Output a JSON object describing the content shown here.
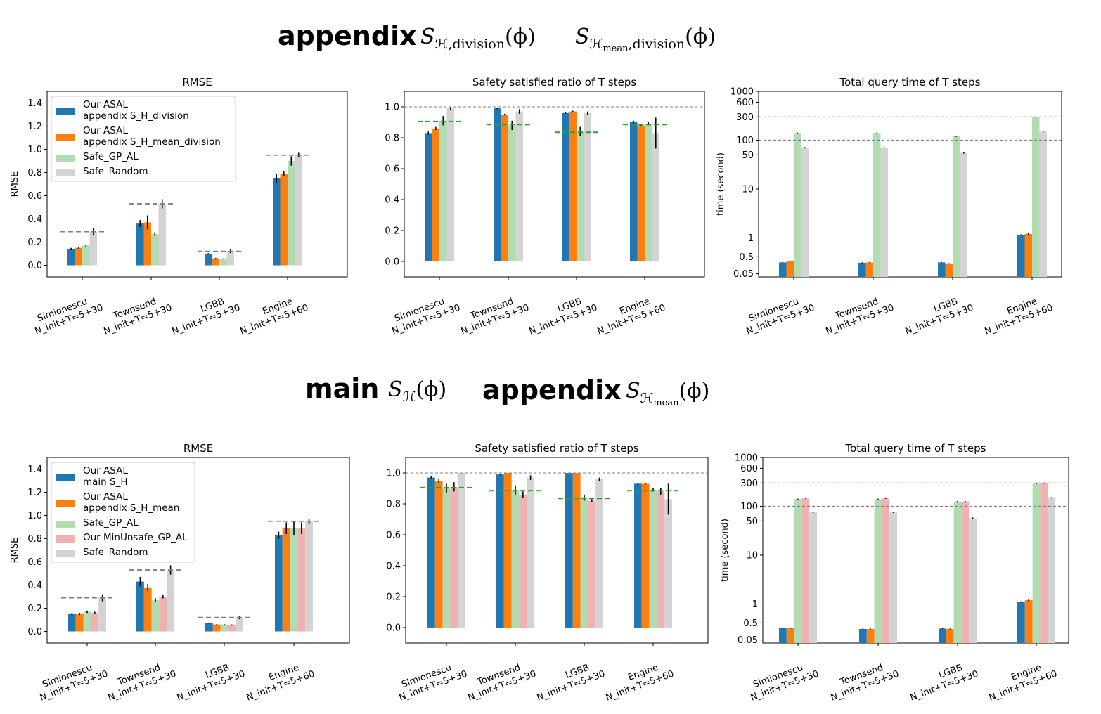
{
  "headers": {
    "top": {
      "word1": "appendix",
      "expr1": {
        "letter": "S",
        "sub": "ℋ,division",
        "arg": "(ϕ)"
      },
      "expr2": {
        "letter": "S",
        "sub": "ℋ",
        "subsub": "mean",
        "sub2": ",division",
        "arg": "(ϕ)"
      }
    },
    "bottom": {
      "word1": "main",
      "expr1": {
        "letter": "S",
        "sub": "ℋ",
        "arg": "(ϕ)"
      },
      "word2": "appendix",
      "expr2": {
        "letter": "S",
        "sub": "ℋ",
        "subsub": "mean",
        "arg": "(ϕ)"
      }
    }
  },
  "colors": {
    "blue": "#1f77b4",
    "orange": "#ff7f0e",
    "green": "#b1dcb1",
    "pink": "#f0b1b2",
    "gray": "#d3d3d3",
    "ref_gray": "#808080",
    "ref_green": "#2ca02c"
  },
  "chart_data": [
    {
      "id": "top_rmse",
      "type": "bar",
      "title": "RMSE",
      "xlabel": "",
      "ylabel": "RMSE",
      "ylim": [
        -0.1,
        1.5
      ],
      "yticks": [
        0.0,
        0.2,
        0.4,
        0.6,
        0.8,
        1.0,
        1.2,
        1.4
      ],
      "ytick_labels": [
        "0.0",
        "0.2",
        "0.4",
        "0.6",
        "0.8",
        "1.0",
        "1.2",
        "1.4"
      ],
      "categories": [
        [
          "Simionescu",
          "N_init+T=5+30"
        ],
        [
          "Townsend",
          "N_init+T=5+30"
        ],
        [
          "LGBB",
          "N_init+T=5+30"
        ],
        [
          "Engine",
          "N_init+T=5+60"
        ]
      ],
      "legend": {
        "placement": "upper-left",
        "entries": [
          [
            "Our ASAL",
            "  appendix S_H_division"
          ],
          [
            "Our ASAL",
            "  appendix S_H_mean_division"
          ],
          [
            "Safe_GP_AL"
          ],
          [
            "Safe_Random"
          ]
        ]
      },
      "series": [
        {
          "name": "Our ASAL appendix S_H_division",
          "color_key": "blue",
          "values": [
            0.14,
            0.36,
            0.1,
            0.75
          ],
          "err": [
            0.01,
            0.03,
            0.005,
            0.04
          ]
        },
        {
          "name": "Our ASAL appendix S_H_mean_division",
          "color_key": "orange",
          "values": [
            0.15,
            0.37,
            0.06,
            0.79
          ],
          "err": [
            0.01,
            0.06,
            0.004,
            0.02
          ]
        },
        {
          "name": "Safe_GP_AL",
          "color_key": "green",
          "values": [
            0.17,
            0.27,
            0.055,
            0.9
          ],
          "err": [
            0.01,
            0.015,
            0.004,
            0.04
          ]
        },
        {
          "name": "Safe_Random",
          "color_key": "gray",
          "values": [
            0.29,
            0.53,
            0.12,
            0.95
          ],
          "err": [
            0.03,
            0.04,
            0.015,
            0.02
          ]
        }
      ],
      "ref_lines": [
        {
          "color_key": "ref_gray",
          "style": "dashed",
          "per_category": [
            0.29,
            0.53,
            0.12,
            0.95
          ]
        }
      ]
    },
    {
      "id": "top_safety",
      "type": "bar",
      "title": "Safety satisfied ratio of T steps",
      "xlabel": "",
      "ylabel": "",
      "ylim": [
        -0.1,
        1.1
      ],
      "yticks": [
        0.0,
        0.2,
        0.4,
        0.6,
        0.8,
        1.0
      ],
      "ytick_labels": [
        "0.0",
        "0.2",
        "0.4",
        "0.6",
        "0.8",
        "1.0"
      ],
      "categories": [
        [
          "Simionescu",
          "N_init+T=5+30"
        ],
        [
          "Townsend",
          "N_init+T=5+30"
        ],
        [
          "LGBB",
          "N_init+T=5+30"
        ],
        [
          "Engine",
          "N_init+T=5+60"
        ]
      ],
      "series": [
        {
          "name": "Our ASAL appendix S_H_division",
          "color_key": "blue",
          "values": [
            0.83,
            0.99,
            0.96,
            0.9
          ],
          "err": [
            0.01,
            0.005,
            0.005,
            0.01
          ]
        },
        {
          "name": "Our ASAL appendix S_H_mean_division",
          "color_key": "orange",
          "values": [
            0.86,
            0.95,
            0.97,
            0.88
          ],
          "err": [
            0.01,
            0.005,
            0.005,
            0.005
          ]
        },
        {
          "name": "Safe_GP_AL",
          "color_key": "green",
          "values": [
            0.91,
            0.88,
            0.84,
            0.89
          ],
          "err": [
            0.03,
            0.03,
            0.03,
            0.01
          ]
        },
        {
          "name": "Safe_Random",
          "color_key": "gray",
          "values": [
            0.99,
            0.97,
            0.96,
            0.83
          ],
          "err": [
            0.01,
            0.015,
            0.01,
            0.1
          ]
        }
      ],
      "ref_lines": [
        {
          "color_key": "ref_gray",
          "style": "dashed",
          "value": 1.0
        },
        {
          "color_key": "ref_green",
          "style": "dashed",
          "per_category": [
            0.905,
            0.885,
            0.835,
            0.885
          ]
        }
      ]
    },
    {
      "id": "top_time",
      "type": "bar",
      "title": "Total query time of T steps",
      "xlabel": "",
      "ylabel": "time (second)",
      "yscale": "symlog",
      "ylim": [
        0.03,
        1000
      ],
      "yticks": [
        0.05,
        0.5,
        1,
        10,
        50,
        100,
        300,
        600,
        1000
      ],
      "ytick_labels": [
        "0.05",
        "0.5",
        "1",
        "10",
        "50",
        "100",
        "300",
        "600",
        "1000"
      ],
      "categories": [
        [
          "Simionescu",
          "N_init+T=5+30"
        ],
        [
          "Townsend",
          "N_init+T=5+30"
        ],
        [
          "LGBB",
          "N_init+T=5+30"
        ],
        [
          "Engine",
          "N_init+T=5+60"
        ]
      ],
      "series": [
        {
          "name": "Our ASAL appendix S_H_division",
          "color_key": "blue",
          "values": [
            0.35,
            0.34,
            0.35,
            1.15
          ],
          "err": [
            0.01,
            0.01,
            0.01,
            0.03
          ]
        },
        {
          "name": "Our ASAL appendix S_H_mean_division",
          "color_key": "orange",
          "values": [
            0.38,
            0.35,
            0.32,
            1.2
          ],
          "err": [
            0.01,
            0.01,
            0.01,
            0.08
          ]
        },
        {
          "name": "Safe_GP_AL",
          "color_key": "green",
          "values": [
            140,
            140,
            120,
            300
          ],
          "err": [
            3,
            3,
            3,
            5
          ]
        },
        {
          "name": "Safe_Random",
          "color_key": "gray",
          "values": [
            70,
            70,
            55,
            150
          ],
          "err": [
            2,
            2,
            2,
            4
          ]
        }
      ],
      "ref_lines": [
        {
          "color_key": "ref_gray",
          "style": "dashed",
          "value": 300
        },
        {
          "color_key": "ref_gray",
          "style": "dashed",
          "value": 100
        }
      ]
    },
    {
      "id": "bottom_rmse",
      "type": "bar",
      "title": "RMSE",
      "xlabel": "",
      "ylabel": "RMSE",
      "ylim": [
        -0.1,
        1.5
      ],
      "yticks": [
        0.0,
        0.2,
        0.4,
        0.6,
        0.8,
        1.0,
        1.2,
        1.4
      ],
      "ytick_labels": [
        "0.0",
        "0.2",
        "0.4",
        "0.6",
        "0.8",
        "1.0",
        "1.2",
        "1.4"
      ],
      "categories": [
        [
          "Simionescu",
          "N_init+T=5+30"
        ],
        [
          "Townsend",
          "N_init+T=5+30"
        ],
        [
          "LGBB",
          "N_init+T=5+30"
        ],
        [
          "Engine",
          "N_init+T=5+60"
        ]
      ],
      "legend": {
        "placement": "upper-left",
        "entries": [
          [
            "Our ASAL",
            "  main S_H"
          ],
          [
            "Our ASAL",
            "  appendix S_H_mean"
          ],
          [
            "Safe_GP_AL"
          ],
          [
            "Our MinUnsafe_GP_AL"
          ],
          [
            "Safe_Random"
          ]
        ]
      },
      "series": [
        {
          "name": "Our ASAL main S_H",
          "color_key": "blue",
          "values": [
            0.15,
            0.43,
            0.07,
            0.83
          ],
          "err": [
            0.01,
            0.04,
            0.003,
            0.03
          ]
        },
        {
          "name": "Our ASAL appendix S_H_mean",
          "color_key": "orange",
          "values": [
            0.15,
            0.38,
            0.06,
            0.89
          ],
          "err": [
            0.01,
            0.03,
            0.003,
            0.05
          ]
        },
        {
          "name": "Safe_GP_AL",
          "color_key": "green",
          "values": [
            0.17,
            0.27,
            0.06,
            0.89
          ],
          "err": [
            0.01,
            0.015,
            0.003,
            0.06
          ]
        },
        {
          "name": "Our MinUnsafe_GP_AL",
          "color_key": "pink",
          "values": [
            0.16,
            0.3,
            0.055,
            0.89
          ],
          "err": [
            0.01,
            0.015,
            0.005,
            0.05
          ]
        },
        {
          "name": "Safe_Random",
          "color_key": "gray",
          "values": [
            0.29,
            0.53,
            0.12,
            0.95
          ],
          "err": [
            0.03,
            0.04,
            0.015,
            0.02
          ]
        }
      ],
      "ref_lines": [
        {
          "color_key": "ref_gray",
          "style": "dashed",
          "per_category": [
            0.29,
            0.53,
            0.12,
            0.95
          ]
        }
      ]
    },
    {
      "id": "bottom_safety",
      "type": "bar",
      "title": "Safety satisfied ratio of T steps",
      "xlabel": "",
      "ylabel": "",
      "ylim": [
        -0.1,
        1.1
      ],
      "yticks": [
        0.0,
        0.2,
        0.4,
        0.6,
        0.8,
        1.0
      ],
      "ytick_labels": [
        "0.0",
        "0.2",
        "0.4",
        "0.6",
        "0.8",
        "1.0"
      ],
      "categories": [
        [
          "Simionescu",
          "N_init+T=5+30"
        ],
        [
          "Townsend",
          "N_init+T=5+30"
        ],
        [
          "LGBB",
          "N_init+T=5+30"
        ],
        [
          "Engine",
          "N_init+T=5+60"
        ]
      ],
      "series": [
        {
          "name": "Our ASAL main S_H",
          "color_key": "blue",
          "values": [
            0.97,
            0.99,
            1.0,
            0.93
          ],
          "err": [
            0.01,
            0.005,
            0.0,
            0.005
          ]
        },
        {
          "name": "Our ASAL appendix S_H_mean",
          "color_key": "orange",
          "values": [
            0.95,
            1.0,
            1.0,
            0.93
          ],
          "err": [
            0.015,
            0.0,
            0.0,
            0.005
          ]
        },
        {
          "name": "Safe_GP_AL",
          "color_key": "green",
          "values": [
            0.9,
            0.89,
            0.84,
            0.89
          ],
          "err": [
            0.03,
            0.03,
            0.02,
            0.01
          ]
        },
        {
          "name": "Our MinUnsafe_GP_AL",
          "color_key": "pink",
          "values": [
            0.91,
            0.86,
            0.82,
            0.88
          ],
          "err": [
            0.03,
            0.02,
            0.01,
            0.02
          ]
        },
        {
          "name": "Safe_Random",
          "color_key": "gray",
          "values": [
            1.0,
            0.97,
            0.96,
            0.83
          ],
          "err": [
            0.0,
            0.015,
            0.01,
            0.1
          ]
        }
      ],
      "ref_lines": [
        {
          "color_key": "ref_gray",
          "style": "dashed",
          "value": 1.0
        },
        {
          "color_key": "ref_green",
          "style": "dashed",
          "per_category": [
            0.905,
            0.885,
            0.835,
            0.885
          ]
        }
      ]
    },
    {
      "id": "bottom_time",
      "type": "bar",
      "title": "Total query time of T steps",
      "xlabel": "",
      "ylabel": "time (second)",
      "yscale": "symlog",
      "ylim": [
        0.03,
        1000
      ],
      "yticks": [
        0.05,
        0.5,
        1,
        10,
        50,
        100,
        300,
        600,
        1000
      ],
      "ytick_labels": [
        "0.05",
        "0.5",
        "1",
        "10",
        "50",
        "100",
        "300",
        "600",
        "1000"
      ],
      "categories": [
        [
          "Simionescu",
          "N_init+T=5+30"
        ],
        [
          "Townsend",
          "N_init+T=5+30"
        ],
        [
          "LGBB",
          "N_init+T=5+30"
        ],
        [
          "Engine",
          "N_init+T=5+60"
        ]
      ],
      "series": [
        {
          "name": "Our ASAL main S_H",
          "color_key": "blue",
          "values": [
            0.36,
            0.34,
            0.35,
            1.1
          ],
          "err": [
            0.01,
            0.01,
            0.01,
            0.03
          ]
        },
        {
          "name": "Our ASAL appendix S_H_mean",
          "color_key": "orange",
          "values": [
            0.36,
            0.34,
            0.34,
            1.2
          ],
          "err": [
            0.01,
            0.01,
            0.01,
            0.08
          ]
        },
        {
          "name": "Safe_GP_AL",
          "color_key": "green",
          "values": [
            140,
            140,
            125,
            290
          ],
          "err": [
            3,
            3,
            3,
            5
          ]
        },
        {
          "name": "Our MinUnsafe_GP_AL",
          "color_key": "pink",
          "values": [
            145,
            145,
            125,
            300
          ],
          "err": [
            3,
            3,
            3,
            8
          ]
        },
        {
          "name": "Safe_Random",
          "color_key": "gray",
          "values": [
            75,
            75,
            57,
            150
          ],
          "err": [
            2,
            2,
            2,
            4
          ]
        }
      ],
      "ref_lines": [
        {
          "color_key": "ref_gray",
          "style": "dashed",
          "value": 300
        },
        {
          "color_key": "ref_gray",
          "style": "dashed",
          "value": 100
        }
      ]
    }
  ]
}
